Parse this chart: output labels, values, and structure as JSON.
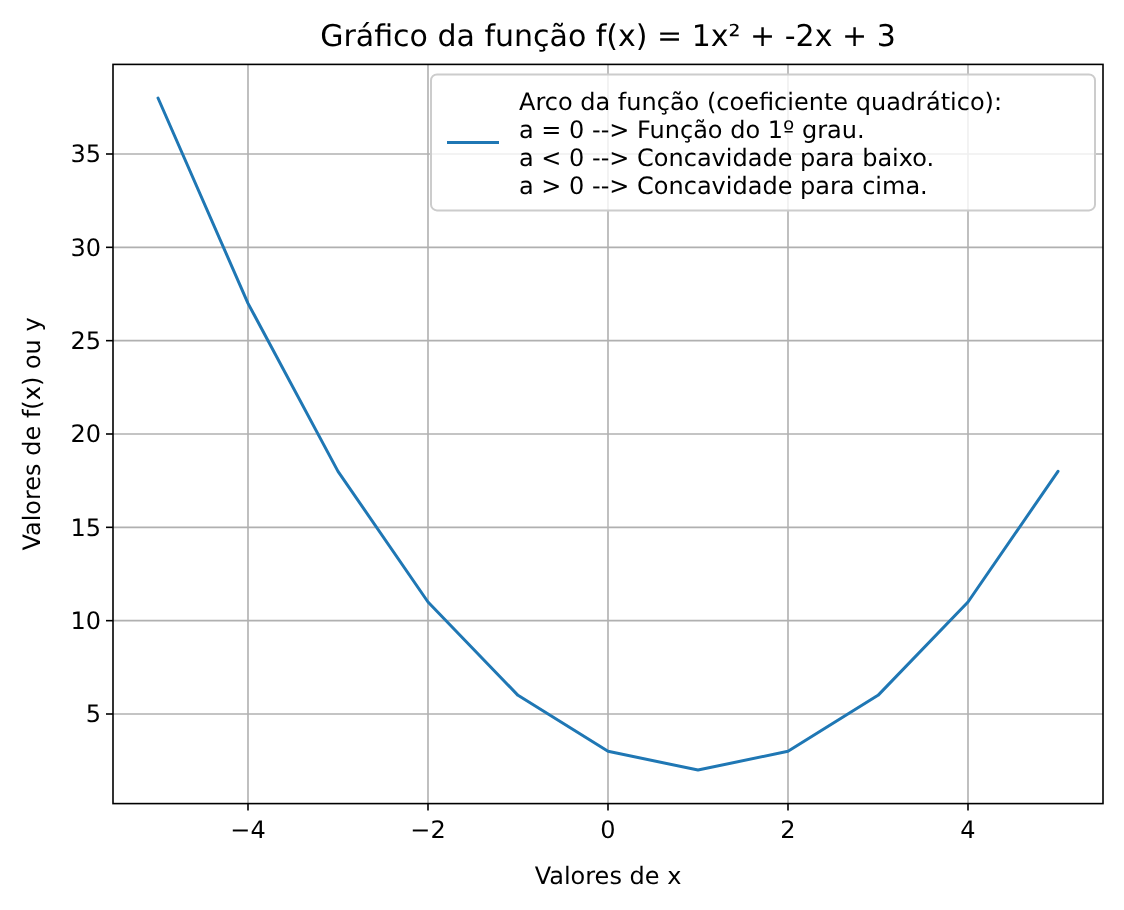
{
  "chart_data": {
    "type": "line",
    "title": "Gráfico da função f(x) = 1x² + -2x + 3",
    "xlabel": "Valores de x",
    "ylabel": "Valores de f(x) ou y",
    "x": [
      -5,
      -4,
      -3,
      -2,
      -1,
      0,
      1,
      2,
      3,
      4,
      5
    ],
    "series": [
      {
        "name": "Arco da função (coeficiente quadrático):\na = 0 --> Função do 1º grau.\na < 0 --> Concavidade para baixo.\na > 0 --> Concavidade para cima.",
        "color": "#1f77b4",
        "values": [
          38,
          27,
          18,
          11,
          6,
          3,
          2,
          3,
          6,
          11,
          18
        ]
      }
    ],
    "xlim": [
      -5.5,
      5.5
    ],
    "ylim": [
      0.2,
      39.8
    ],
    "xticks": [
      {
        "value": -4,
        "label": "−4"
      },
      {
        "value": -2,
        "label": "−2"
      },
      0,
      2,
      4
    ],
    "yticks": [
      5,
      10,
      15,
      20,
      25,
      30,
      35
    ],
    "grid": true,
    "legend": "top right",
    "marker": "none",
    "line_style": "solid"
  }
}
